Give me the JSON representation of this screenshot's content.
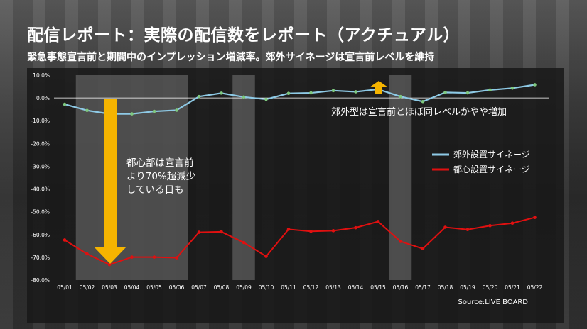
{
  "header": {
    "title": "配信レポート：実際の配信数をレポート（アクチュアル）",
    "subtitle": "緊急事態宣言前と期間中のインプレッション増減率。郊外サイネージは宣言前レベルを維持"
  },
  "colors": {
    "suburban": "#8ecae6",
    "urban": "#e01010",
    "arrow": "#f5b400",
    "shade": "#8a8a8a",
    "zero_line": "#ffffff"
  },
  "annotations": {
    "urban_note": [
      "都心部は宣言前",
      "より70%超減少",
      "している日も"
    ],
    "suburban_note": "郊外型は宣言前とほぼ同レベルかやや増加"
  },
  "source": "Source:LIVE BOARD",
  "chart_data": {
    "type": "line",
    "x": [
      "05/01",
      "05/02",
      "05/03",
      "05/04",
      "05/05",
      "05/06",
      "05/07",
      "05/08",
      "05/09",
      "05/10",
      "05/11",
      "05/12",
      "05/13",
      "05/14",
      "05/15",
      "05/16",
      "05/17",
      "05/18",
      "05/19",
      "05/20",
      "05/21",
      "05/22"
    ],
    "ylim": [
      -80,
      10
    ],
    "yticks": [
      "10.0%",
      "0.0%",
      "-10.0%",
      "-20.0%",
      "-30.0%",
      "-40.0%",
      "-50.0%",
      "-60.0%",
      "-70.0%",
      "-80.0%"
    ],
    "ytick_values": [
      10,
      0,
      -10,
      -20,
      -30,
      -40,
      -50,
      -60,
      -70,
      -80
    ],
    "series": [
      {
        "name": "郊外設置サイネージ",
        "values": [
          -2.8,
          -5.5,
          -7.0,
          -7.0,
          -5.9,
          -5.4,
          0.6,
          2.1,
          0.4,
          -0.6,
          2.0,
          2.2,
          3.2,
          2.7,
          3.8,
          0.6,
          -1.6,
          2.4,
          2.2,
          3.5,
          4.3,
          5.8
        ]
      },
      {
        "name": "都心設置サイネージ",
        "values": [
          -62.4,
          -68.5,
          -73.2,
          -69.9,
          -69.9,
          -70.2,
          -59.0,
          -58.8,
          -63.5,
          -69.6,
          -57.7,
          -58.6,
          -58.3,
          -57.0,
          -54.3,
          -63.0,
          -66.2,
          -56.8,
          -57.8,
          -56.1,
          -55.0,
          -52.5
        ]
      }
    ],
    "shaded_ranges": [
      [
        "05/02",
        "05/06"
      ],
      [
        "05/09",
        "05/09"
      ],
      [
        "05/16",
        "05/16"
      ]
    ],
    "legend_position": "right"
  }
}
